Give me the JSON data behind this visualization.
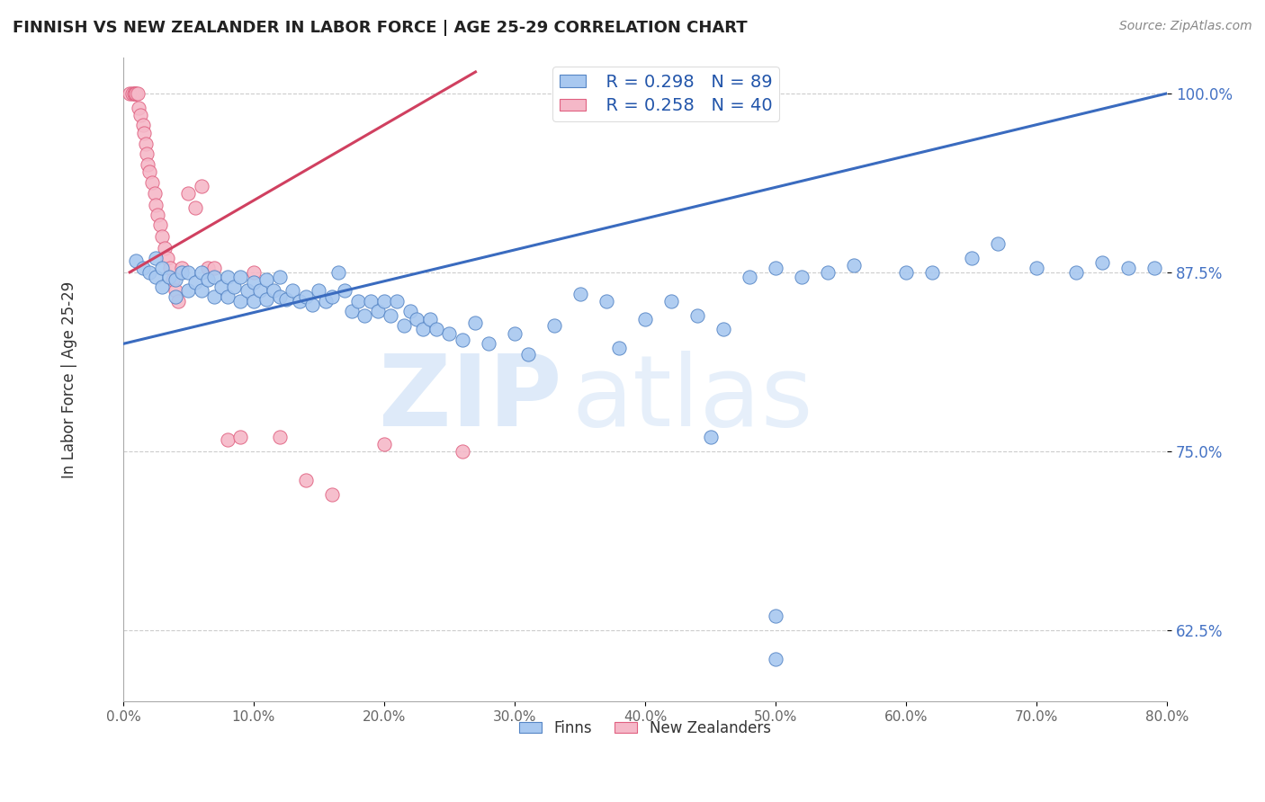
{
  "title": "FINNISH VS NEW ZEALANDER IN LABOR FORCE | AGE 25-29 CORRELATION CHART",
  "source": "Source: ZipAtlas.com",
  "ylabel": "In Labor Force | Age 25-29",
  "xlabel_ticks": [
    "0.0%",
    "10.0%",
    "20.0%",
    "30.0%",
    "40.0%",
    "50.0%",
    "60.0%",
    "70.0%",
    "80.0%"
  ],
  "ytick_labels": [
    "62.5%",
    "75.0%",
    "87.5%",
    "100.0%"
  ],
  "ytick_values": [
    0.625,
    0.75,
    0.875,
    1.0
  ],
  "xlim": [
    0.0,
    0.8
  ],
  "ylim": [
    0.575,
    1.025
  ],
  "legend_r_finn": "R = 0.298",
  "legend_n_finn": "N = 89",
  "legend_r_nz": "R = 0.258",
  "legend_n_nz": "N = 40",
  "legend_label_finn": "Finns",
  "legend_label_nz": "New Zealanders",
  "finn_color": "#a8c8f0",
  "finn_edge_color": "#5585c5",
  "nz_color": "#f5b8c8",
  "nz_edge_color": "#e06080",
  "finn_line_color": "#3a6bbf",
  "nz_line_color": "#d04060",
  "finn_trend_x": [
    0.0,
    0.8
  ],
  "finn_trend_y": [
    0.825,
    1.0
  ],
  "nz_trend_x": [
    0.005,
    0.27
  ],
  "nz_trend_y": [
    0.875,
    1.015
  ],
  "finn_x": [
    0.01,
    0.015,
    0.02,
    0.025,
    0.025,
    0.03,
    0.03,
    0.035,
    0.04,
    0.04,
    0.045,
    0.05,
    0.05,
    0.055,
    0.06,
    0.06,
    0.065,
    0.07,
    0.07,
    0.075,
    0.08,
    0.08,
    0.085,
    0.09,
    0.09,
    0.095,
    0.1,
    0.1,
    0.105,
    0.11,
    0.11,
    0.115,
    0.12,
    0.12,
    0.125,
    0.13,
    0.135,
    0.14,
    0.145,
    0.15,
    0.155,
    0.16,
    0.165,
    0.17,
    0.175,
    0.18,
    0.185,
    0.19,
    0.195,
    0.2,
    0.205,
    0.21,
    0.215,
    0.22,
    0.225,
    0.23,
    0.235,
    0.24,
    0.25,
    0.26,
    0.27,
    0.28,
    0.3,
    0.31,
    0.33,
    0.35,
    0.37,
    0.38,
    0.4,
    0.42,
    0.44,
    0.46,
    0.48,
    0.5,
    0.52,
    0.54,
    0.56,
    0.6,
    0.62,
    0.65,
    0.67,
    0.7,
    0.73,
    0.75,
    0.77,
    0.79,
    0.45,
    0.5,
    0.5
  ],
  "finn_y": [
    0.883,
    0.878,
    0.875,
    0.885,
    0.872,
    0.878,
    0.865,
    0.872,
    0.87,
    0.858,
    0.875,
    0.875,
    0.862,
    0.868,
    0.875,
    0.862,
    0.87,
    0.872,
    0.858,
    0.865,
    0.872,
    0.858,
    0.865,
    0.872,
    0.855,
    0.862,
    0.868,
    0.855,
    0.862,
    0.87,
    0.856,
    0.862,
    0.858,
    0.872,
    0.856,
    0.862,
    0.855,
    0.858,
    0.852,
    0.862,
    0.855,
    0.858,
    0.875,
    0.862,
    0.848,
    0.855,
    0.845,
    0.855,
    0.848,
    0.855,
    0.845,
    0.855,
    0.838,
    0.848,
    0.842,
    0.835,
    0.842,
    0.835,
    0.832,
    0.828,
    0.84,
    0.825,
    0.832,
    0.818,
    0.838,
    0.86,
    0.855,
    0.822,
    0.842,
    0.855,
    0.845,
    0.835,
    0.872,
    0.878,
    0.872,
    0.875,
    0.88,
    0.875,
    0.875,
    0.885,
    0.895,
    0.878,
    0.875,
    0.882,
    0.878,
    0.878,
    0.76,
    0.635,
    0.605
  ],
  "nz_x": [
    0.005,
    0.007,
    0.008,
    0.009,
    0.01,
    0.011,
    0.012,
    0.013,
    0.015,
    0.016,
    0.017,
    0.018,
    0.019,
    0.02,
    0.022,
    0.024,
    0.025,
    0.026,
    0.028,
    0.03,
    0.032,
    0.034,
    0.036,
    0.038,
    0.04,
    0.042,
    0.045,
    0.05,
    0.055,
    0.06,
    0.065,
    0.07,
    0.08,
    0.09,
    0.1,
    0.12,
    0.14,
    0.16,
    0.2,
    0.26
  ],
  "nz_y": [
    1.0,
    1.0,
    1.0,
    1.0,
    1.0,
    1.0,
    0.99,
    0.985,
    0.978,
    0.972,
    0.965,
    0.958,
    0.95,
    0.945,
    0.938,
    0.93,
    0.922,
    0.915,
    0.908,
    0.9,
    0.892,
    0.885,
    0.878,
    0.87,
    0.862,
    0.855,
    0.878,
    0.93,
    0.92,
    0.935,
    0.878,
    0.878,
    0.758,
    0.76,
    0.875,
    0.76,
    0.73,
    0.72,
    0.755,
    0.75
  ]
}
